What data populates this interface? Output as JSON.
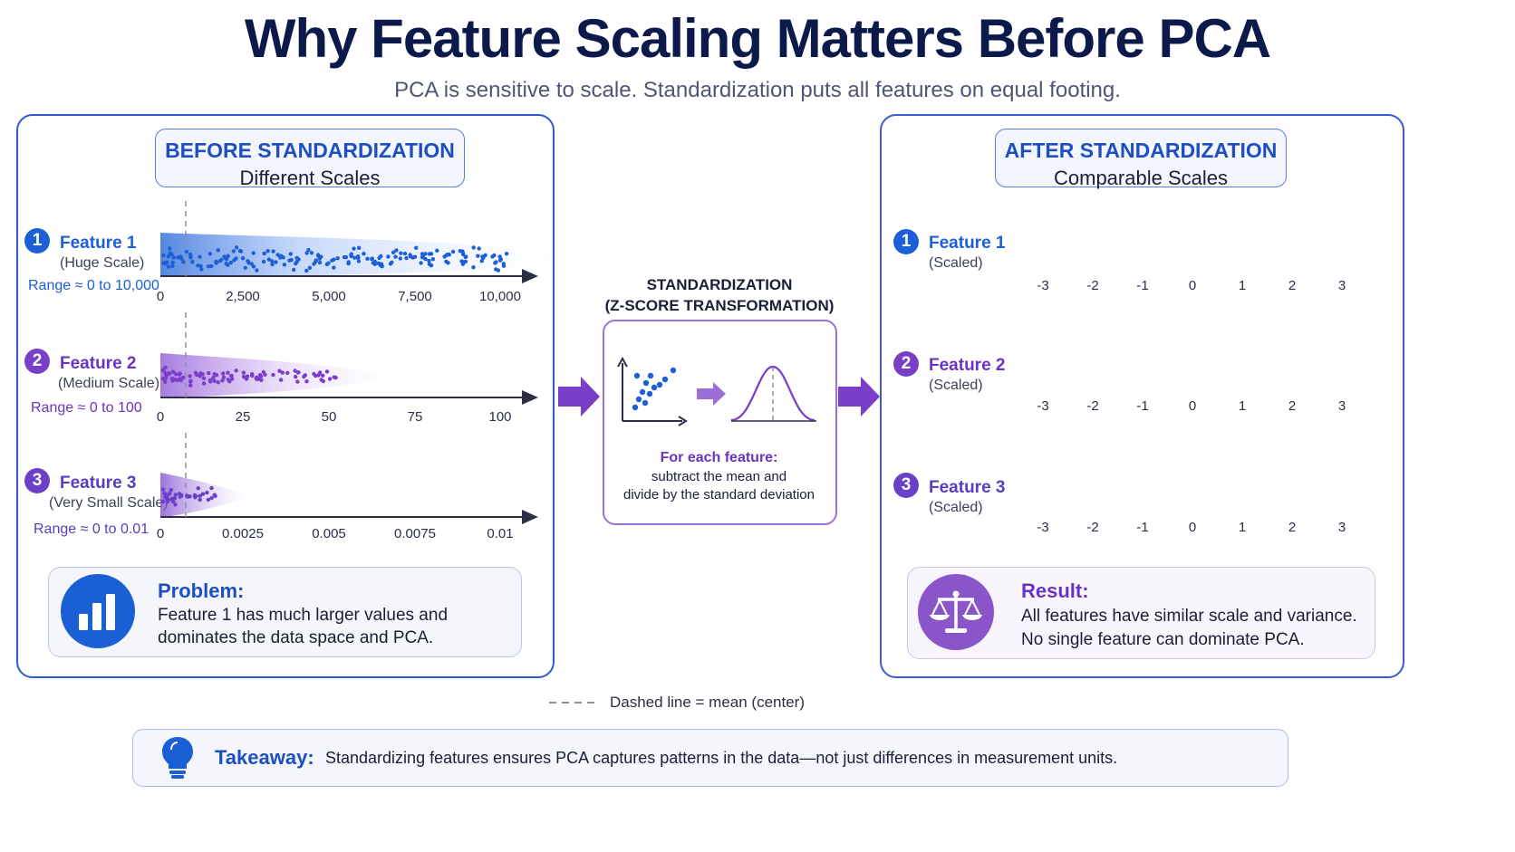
{
  "title": "Why Feature Scaling Matters Before PCA",
  "subtitle": "PCA is sensitive to scale. Standardization puts all features on equal footing.",
  "colors": {
    "blue": "#1d5fd6",
    "purple": "#6a34c2",
    "navy": "#0c1a4b"
  },
  "before": {
    "header_title": "BEFORE STANDARDIZATION",
    "header_sub": "Different Scales",
    "features": [
      {
        "num": "1",
        "name": "Feature 1",
        "scale": "(Huge Scale)",
        "range": "Range ≈ 0 to 10,000",
        "ticks": [
          "0",
          "2,500",
          "5,000",
          "7,500",
          "10,000"
        ]
      },
      {
        "num": "2",
        "name": "Feature 2",
        "scale": "(Medium Scale)",
        "range": "Range ≈ 0 to 100",
        "ticks": [
          "0",
          "25",
          "50",
          "75",
          "100"
        ]
      },
      {
        "num": "3",
        "name": "Feature 3",
        "scale": "(Very Small Scale)",
        "range": "Range ≈ 0 to 0.01",
        "ticks": [
          "0",
          "0.0025",
          "0.005",
          "0.0075",
          "0.01"
        ]
      }
    ],
    "card": {
      "title": "Problem:",
      "line1": "Feature 1 has much larger values and",
      "line2": "dominates the data space and PCA.",
      "icon": "bar-chart-icon"
    }
  },
  "middle": {
    "title1": "STANDARDIZATION",
    "title2": "(Z-SCORE TRANSFORMATION)",
    "lead": "For each feature:",
    "line1": "subtract the mean and",
    "line2": "divide by the standard deviation"
  },
  "after": {
    "header_title": "AFTER STANDARDIZATION",
    "header_sub": "Comparable Scales",
    "features": [
      {
        "num": "1",
        "name": "Feature 1",
        "scale": "(Scaled)"
      },
      {
        "num": "2",
        "name": "Feature 2",
        "scale": "(Scaled)"
      },
      {
        "num": "3",
        "name": "Feature 3",
        "scale": "(Scaled)"
      }
    ],
    "ticks": [
      "-3",
      "-2",
      "-1",
      "0",
      "1",
      "2",
      "3"
    ],
    "card": {
      "title": "Result:",
      "line1": "All features have similar scale and variance.",
      "line2": "No single feature can dominate PCA.",
      "icon": "balance-scale-icon"
    }
  },
  "legend_dashed": "Dashed line = mean (center)",
  "takeaway": {
    "label": "Takeaway:",
    "text": "Standardizing features ensures PCA captures patterns in the data—not just differences in measurement units.",
    "icon": "lightbulb-icon"
  }
}
